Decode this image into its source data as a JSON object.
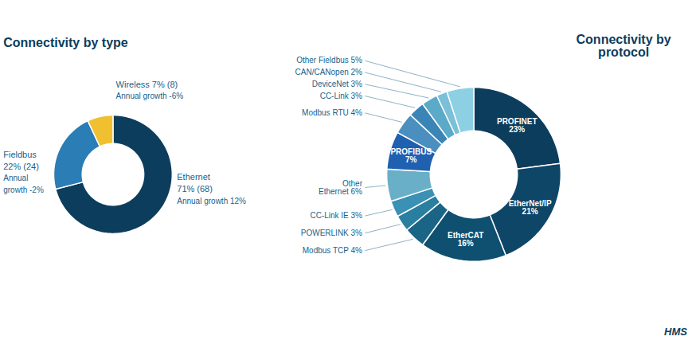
{
  "chart_data": [
    {
      "type": "donut",
      "title": "Connectivity by type",
      "values": [
        71,
        22,
        7
      ],
      "colors": [
        "#0d3d5c",
        "#2a7db5",
        "#f0c030"
      ],
      "annotations": [
        "Wireless 7% (8)",
        "Annual growth -6%",
        "Fieldbus",
        "22% (24)",
        "Annual",
        "growth -2%",
        "Ethernet",
        "71% (68)",
        "Annual growth 12%"
      ]
    },
    {
      "type": "donut",
      "title": "Connectivity by\nprotocol",
      "values": [
        23,
        21,
        16,
        4,
        3,
        3,
        6,
        7,
        4,
        3,
        3,
        2,
        5
      ],
      "colors": [
        "#0d3d5c",
        "#0e4668",
        "#0f5070",
        "#1a6585",
        "#2a7fa0",
        "#3a90b5",
        "#6aafc8",
        "#2060b0",
        "#4a8fbf",
        "#3a85b5",
        "#5aaac8",
        "#7ac0d8",
        "#8dd0e4"
      ],
      "data_labels": true,
      "value_labels": [
        "PROFINET\n23%",
        "EtherNet/IP\n21%",
        "EtherCAT\n16%",
        "Modbus TCP 4%",
        "POWERLINK 3%",
        "CC-Link IE 3%",
        "Other\nEthernet 6%",
        "PROFIBUS\n7%",
        "Modbus RTU 4%",
        "CC-Link 3%",
        "DeviceNet 3%",
        "CAN/CANopen 2%",
        "Other Fieldbus 5%"
      ],
      "annotations": [
        "HMS"
      ]
    }
  ]
}
